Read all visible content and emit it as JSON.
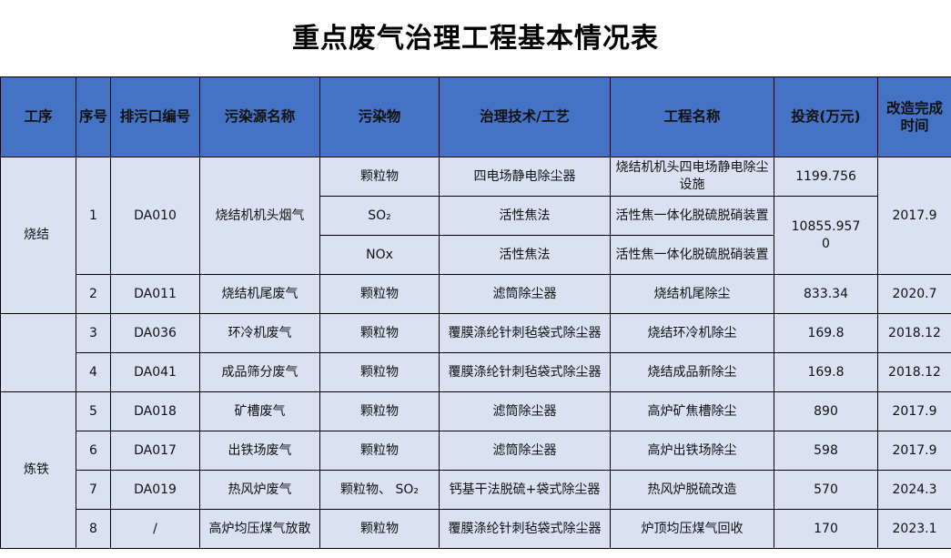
{
  "title": "重点废气治理工程基本情况表",
  "headers": [
    "工序",
    "序号",
    "排污口编号",
    "污染源名称",
    "污染物",
    "治理技术/工艺",
    "工程名称",
    "投资(万元)",
    "改造完成时间"
  ],
  "colors": {
    "header_bg": "#4472C4",
    "body_bg": "#D9E1F2"
  },
  "process": [
    "烧结",
    "",
    "炼铁"
  ],
  "rows": [
    {
      "no": "1",
      "outlet": "DA010",
      "source": "烧结机机头烟气",
      "pollutant": "颗粒物",
      "tech": "四电场静电除尘器",
      "project": "烧结机机头四电场静电除尘设施",
      "invest": "1199.756",
      "date": "2017.9"
    },
    {
      "pollutant": "SO₂",
      "tech": "活性焦法",
      "project": "活性焦一体化脱硫脱硝装置",
      "invest": "10855.9570"
    },
    {
      "pollutant": "NOx",
      "tech": "活性焦法",
      "project": "活性焦一体化脱硫脱硝装置"
    },
    {
      "no": "2",
      "outlet": "DA011",
      "source": "烧结机尾废气",
      "pollutant": "颗粒物",
      "tech": "滤筒除尘器",
      "project": "烧结机尾除尘",
      "invest": "833.34",
      "date": "2020.7"
    },
    {
      "no": "3",
      "outlet": "DA036",
      "source": "环冷机废气",
      "pollutant": "颗粒物",
      "tech": "覆膜涤纶针刺毡袋式除尘器",
      "project": "烧结环冷机除尘",
      "invest": "169.8",
      "date": "2018.12"
    },
    {
      "no": "4",
      "outlet": "DA041",
      "source": "成品筛分废气",
      "pollutant": "颗粒物",
      "tech": "覆膜涤纶针刺毡袋式除尘器",
      "project": "烧结成品新除尘",
      "invest": "169.8",
      "date": "2018.12"
    },
    {
      "no": "5",
      "outlet": "DA018",
      "source": "矿槽废气",
      "pollutant": "颗粒物",
      "tech": "滤筒除尘器",
      "project": "高炉矿焦槽除尘",
      "invest": "890",
      "date": "2017.9"
    },
    {
      "no": "6",
      "outlet": "DA017",
      "source": "出铁场废气",
      "pollutant": "颗粒物",
      "tech": "滤筒除尘器",
      "project": "高炉出铁场除尘",
      "invest": "598",
      "date": "2017.9"
    },
    {
      "no": "7",
      "outlet": "DA019",
      "source": "热风炉废气",
      "pollutant": "颗粒物、 SO₂",
      "tech": "钙基干法脱硫+袋式除尘器",
      "project": "热风炉脱硫改造",
      "invest": "570",
      "date": "2024.3"
    },
    {
      "no": "8",
      "outlet": "/",
      "source": "高炉均压煤气放散",
      "pollutant": "颗粒物",
      "tech": "覆膜涤纶针刺毡袋式除尘器",
      "project": "炉顶均压煤气回收",
      "invest": "170",
      "date": "2023.1"
    }
  ]
}
